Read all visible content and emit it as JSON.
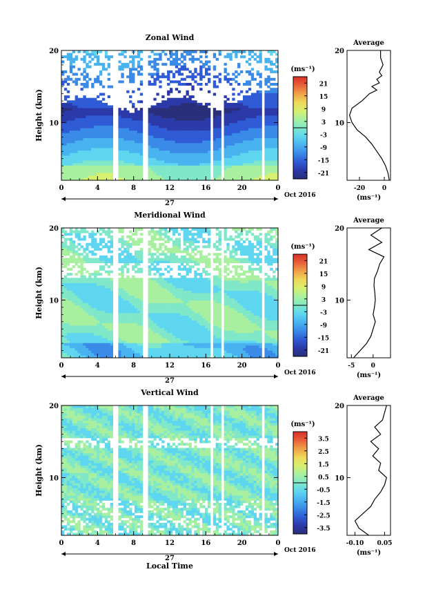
{
  "date_label": "Oct 2016",
  "day_label": "27",
  "xlabel_bottom": "Local Time",
  "ylabel": "Height (km)",
  "cb_unit": "(ms⁻¹)",
  "avg_xunit": "(ms⁻¹)",
  "colors": {
    "scale": [
      "#2a2f7a",
      "#2b3aa8",
      "#2f5bd6",
      "#3a8ae8",
      "#49b3f0",
      "#5fd6f0",
      "#80e8c8",
      "#a8f0a0",
      "#d8f070",
      "#f0d858",
      "#f0a048",
      "#e86038",
      "#d83028"
    ]
  },
  "chart_data": [
    {
      "type": "heatmap",
      "title": "Zonal Wind",
      "ylabel": "Height (km)",
      "xticks": [
        "0",
        "4",
        "8",
        "12",
        "16",
        "20",
        "0"
      ],
      "yticks": [
        "20",
        "10"
      ],
      "xlim": [
        0,
        24
      ],
      "ylim": [
        2,
        20
      ],
      "colorbar_ticks": [
        "21",
        "15",
        "9",
        "3",
        "-3",
        "-9",
        "-15",
        "-21"
      ],
      "colorbar_range": [
        -24,
        24
      ],
      "colorbar_unit": "(ms⁻¹)",
      "average": {
        "title": "Average",
        "xticks": [
          "-20",
          "0"
        ],
        "xlim": [
          -30,
          5
        ],
        "profile": [
          [
            2,
            4
          ],
          [
            3,
            3
          ],
          [
            4,
            1
          ],
          [
            5,
            -2
          ],
          [
            6,
            -6
          ],
          [
            7,
            -10
          ],
          [
            8,
            -15
          ],
          [
            9,
            -22
          ],
          [
            10,
            -26
          ],
          [
            11,
            -28
          ],
          [
            12,
            -26
          ],
          [
            13,
            -18
          ],
          [
            14,
            -12
          ],
          [
            14.5,
            -6
          ],
          [
            15,
            -10
          ],
          [
            15.5,
            -4
          ],
          [
            16,
            -6
          ],
          [
            16.5,
            -2
          ],
          [
            17,
            -4
          ],
          [
            18,
            -1
          ],
          [
            19,
            -3
          ],
          [
            20,
            -3
          ]
        ]
      }
    },
    {
      "type": "heatmap",
      "title": "Meridional Wind",
      "ylabel": "Height (km)",
      "xticks": [
        "0",
        "4",
        "8",
        "12",
        "16",
        "20",
        "0"
      ],
      "yticks": [
        "20",
        "10"
      ],
      "xlim": [
        0,
        24
      ],
      "ylim": [
        2,
        20
      ],
      "colorbar_ticks": [
        "21",
        "15",
        "9",
        "3",
        "-3",
        "-9",
        "-15",
        "-21"
      ],
      "colorbar_range": [
        -24,
        24
      ],
      "colorbar_unit": "(ms⁻¹)",
      "average": {
        "title": "Average",
        "xticks": [
          "-5",
          "0"
        ],
        "xlim": [
          -6,
          4
        ],
        "profile": [
          [
            2,
            -4.5
          ],
          [
            3,
            -3
          ],
          [
            4,
            -1.5
          ],
          [
            5,
            -0.5
          ],
          [
            6,
            0
          ],
          [
            7,
            0.5
          ],
          [
            8,
            0
          ],
          [
            9,
            0.3
          ],
          [
            10,
            0.5
          ],
          [
            11,
            0.4
          ],
          [
            12,
            0.2
          ],
          [
            13,
            0.3
          ],
          [
            14,
            1
          ],
          [
            15,
            1.5
          ],
          [
            16,
            2.5
          ],
          [
            17,
            -1
          ],
          [
            18,
            2
          ],
          [
            19,
            -0.5
          ],
          [
            20,
            2
          ]
        ]
      }
    },
    {
      "type": "heatmap",
      "title": "Vertical Wind",
      "ylabel": "Height (km)",
      "xticks": [
        "0",
        "4",
        "8",
        "12",
        "16",
        "20",
        "0"
      ],
      "yticks": [
        "20",
        "10"
      ],
      "xlim": [
        0,
        24
      ],
      "ylim": [
        2,
        20
      ],
      "colorbar_ticks": [
        "3.5",
        "2.5",
        "1.5",
        "0.5",
        "-0.5",
        "-1.5",
        "-2.5",
        "-3.5"
      ],
      "colorbar_range": [
        -4,
        4
      ],
      "colorbar_unit": "(ms⁻¹)",
      "average": {
        "title": "Average",
        "xticks": [
          "-0.10",
          "0.05"
        ],
        "xlim": [
          -0.14,
          0.08
        ],
        "profile": [
          [
            2,
            -0.03
          ],
          [
            3,
            -0.08
          ],
          [
            4,
            -0.1
          ],
          [
            5,
            -0.06
          ],
          [
            6,
            -0.02
          ],
          [
            7,
            0.0
          ],
          [
            8,
            0.03
          ],
          [
            9,
            0.05
          ],
          [
            10,
            0.06
          ],
          [
            11,
            0.02
          ],
          [
            12,
            0.03
          ],
          [
            13,
            -0.01
          ],
          [
            14,
            0.02
          ],
          [
            15,
            -0.02
          ],
          [
            16,
            0.03
          ],
          [
            17,
            0.0
          ],
          [
            18,
            0.04
          ],
          [
            19,
            0.05
          ],
          [
            20,
            0.06
          ]
        ]
      }
    }
  ]
}
